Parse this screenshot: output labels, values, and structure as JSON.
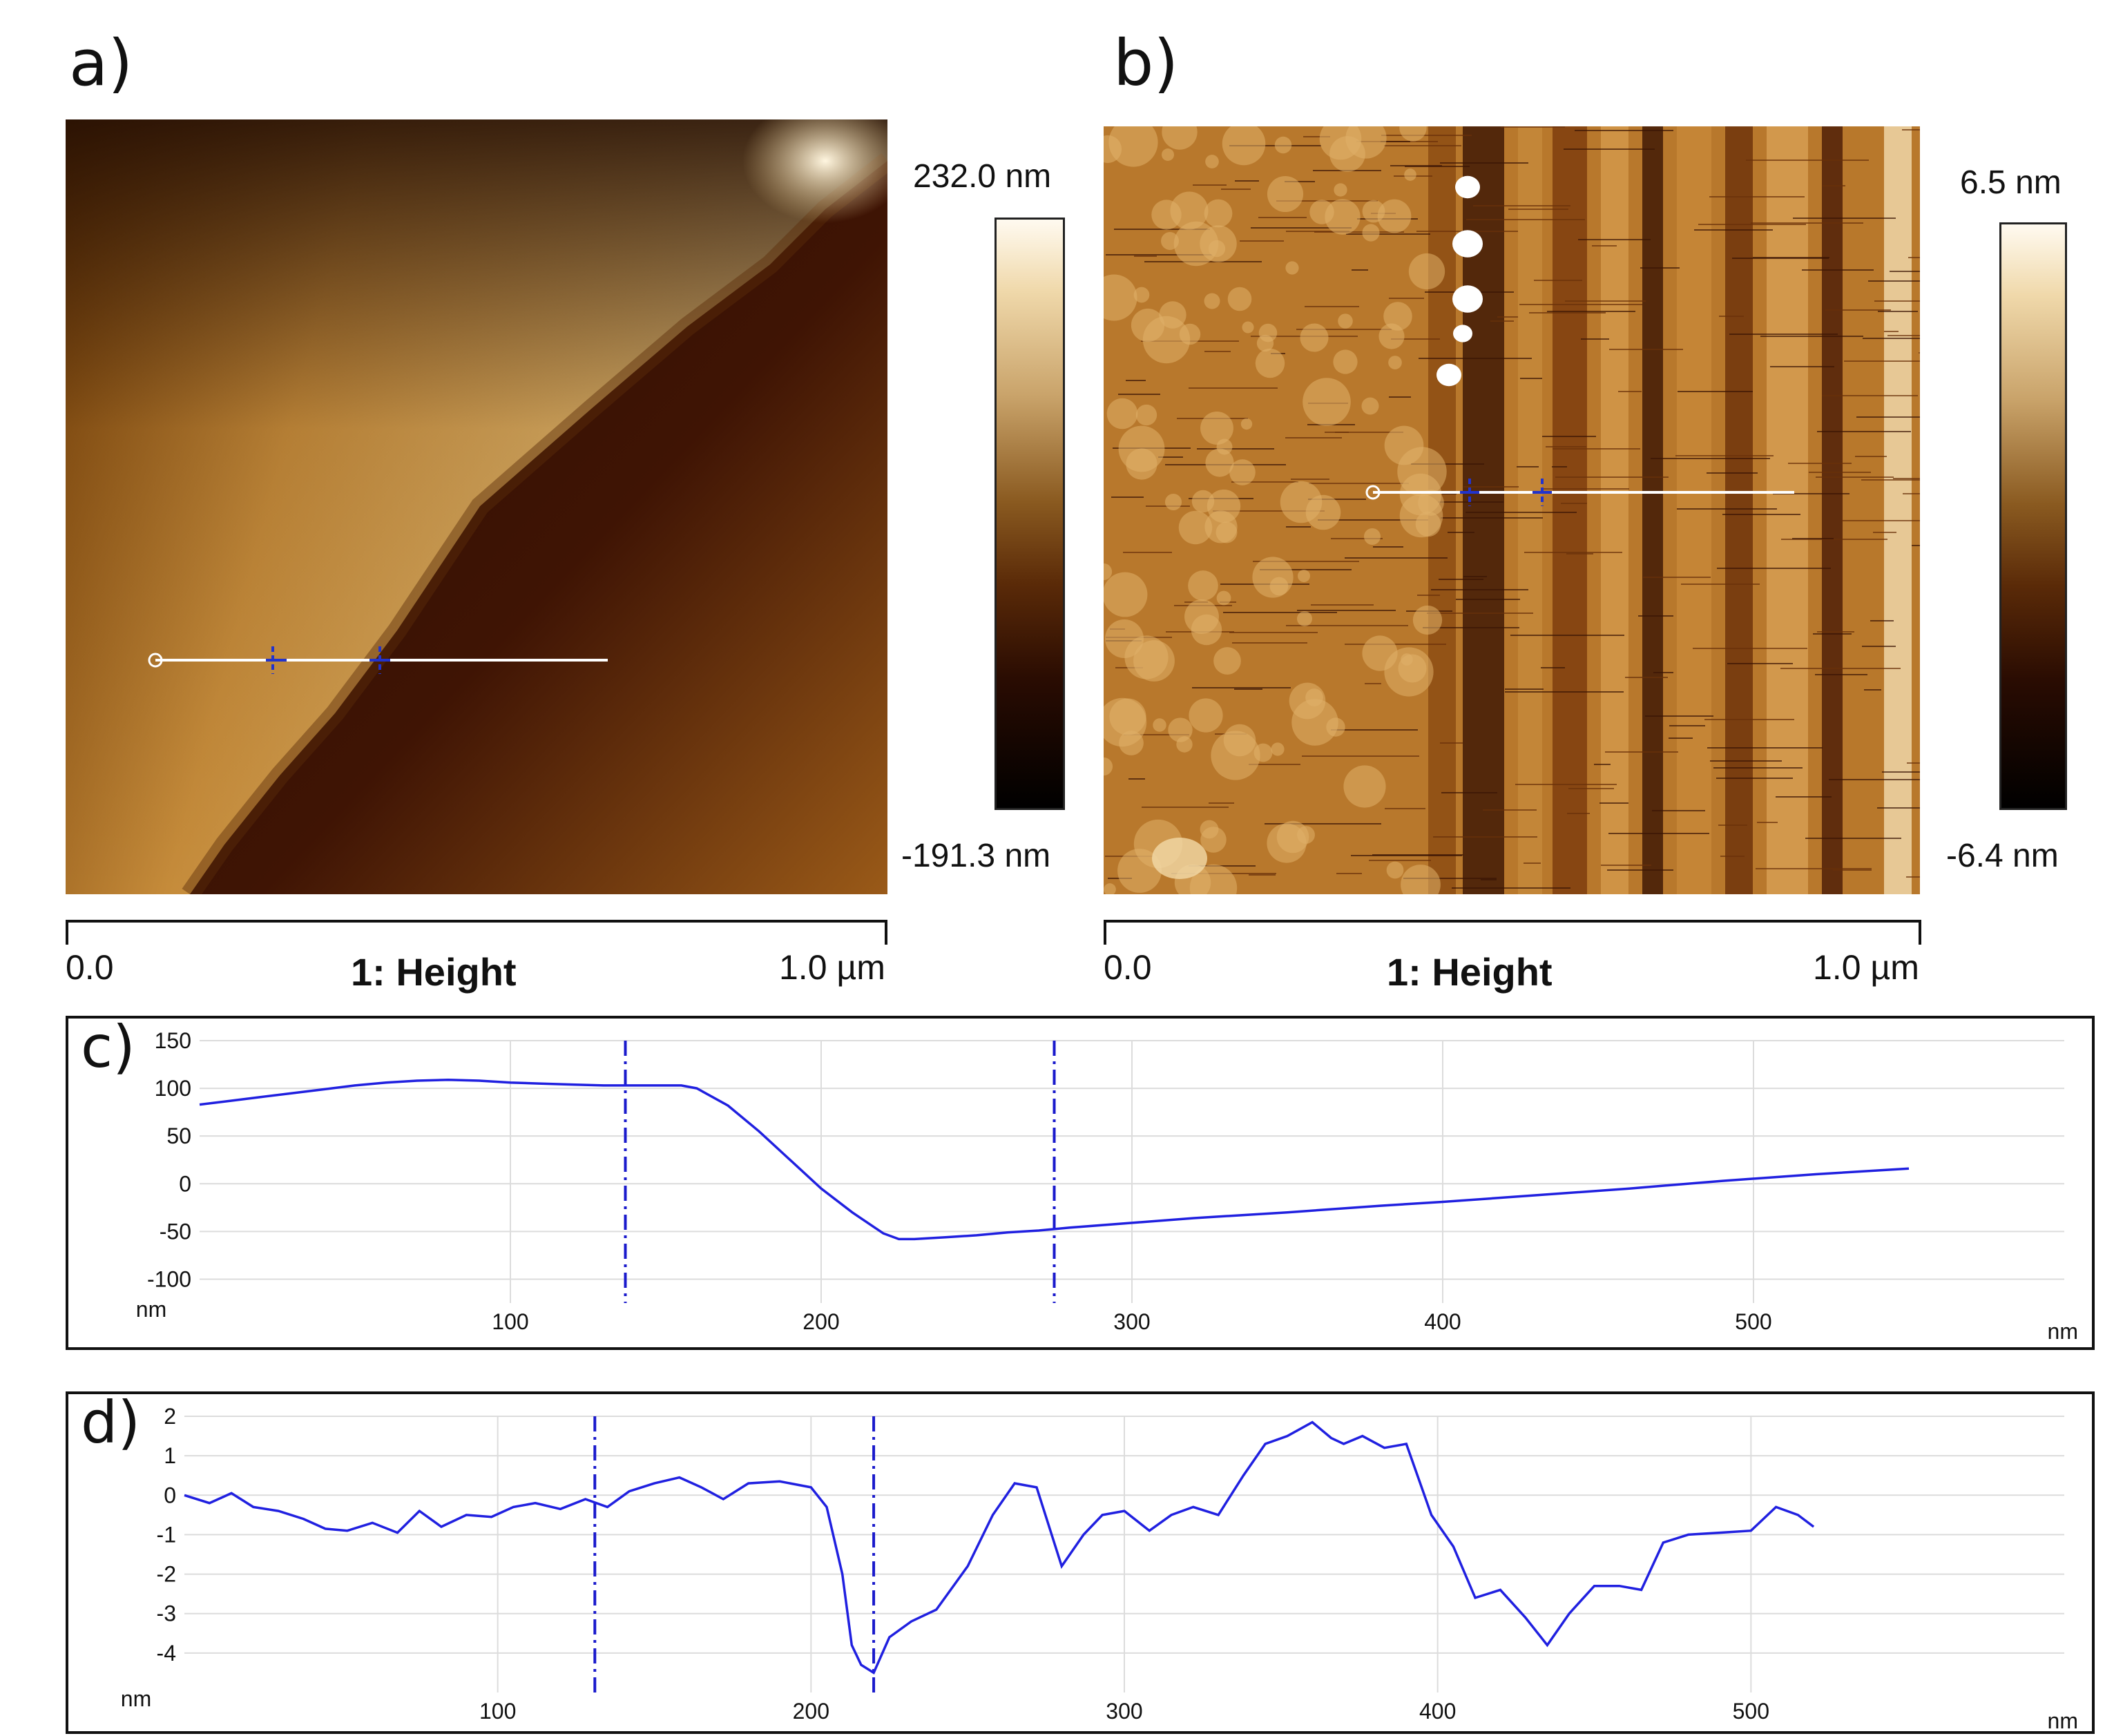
{
  "panels": {
    "a": {
      "letter": "a)",
      "cbar_max": "232.0 nm",
      "cbar_min": "-191.3 nm",
      "scale_start": "0.0",
      "scale_title": "1: Height",
      "scale_end": "1.0 µm"
    },
    "b": {
      "letter": "b)",
      "cbar_max": "6.5 nm",
      "cbar_min": "-6.4 nm",
      "scale_start": "0.0",
      "scale_title": "1: Height",
      "scale_end": "1.0 µm"
    },
    "c": {
      "letter": "c)"
    },
    "d": {
      "letter": "d)"
    }
  },
  "colors": {
    "line": "#2020e0",
    "grid": "#dcdcdc",
    "cursor": "#1a1acc"
  },
  "chart_data": [
    {
      "id": "c",
      "type": "line",
      "title": "",
      "xlabel": "nm",
      "ylabel": "nm",
      "xlim": [
        0,
        600
      ],
      "ylim": [
        -125,
        150
      ],
      "xticks": [
        100,
        200,
        300,
        400,
        500
      ],
      "yticks": [
        150,
        100,
        50,
        0,
        -50,
        -100
      ],
      "cursors": [
        137,
        275
      ],
      "x": [
        0,
        10,
        20,
        30,
        40,
        50,
        60,
        70,
        80,
        90,
        100,
        110,
        120,
        130,
        140,
        150,
        155,
        160,
        170,
        180,
        190,
        200,
        210,
        220,
        225,
        230,
        240,
        250,
        260,
        270,
        280,
        300,
        320,
        350,
        380,
        400,
        430,
        460,
        490,
        520,
        550
      ],
      "y": [
        83,
        87,
        91,
        95,
        99,
        103,
        106,
        108,
        109,
        108,
        106,
        105,
        104,
        103,
        103,
        103,
        103,
        100,
        82,
        55,
        25,
        -5,
        -30,
        -52,
        -58,
        -58,
        -56,
        -54,
        -51,
        -49,
        -46,
        -41,
        -36,
        -30,
        -23,
        -19,
        -12,
        -5,
        3,
        10,
        16
      ]
    },
    {
      "id": "d",
      "type": "line",
      "title": "",
      "xlabel": "nm",
      "ylabel": "nm",
      "xlim": [
        0,
        600
      ],
      "ylim": [
        -5,
        2
      ],
      "xticks": [
        100,
        200,
        300,
        400,
        500
      ],
      "yticks": [
        2,
        1,
        0,
        -1,
        -2,
        -3,
        -4
      ],
      "cursors": [
        131,
        220
      ],
      "x": [
        0,
        8,
        15,
        22,
        30,
        38,
        45,
        52,
        60,
        68,
        75,
        82,
        90,
        98,
        105,
        112,
        120,
        128,
        135,
        142,
        150,
        158,
        165,
        172,
        180,
        190,
        200,
        205,
        210,
        213,
        216,
        220,
        225,
        232,
        240,
        250,
        258,
        265,
        272,
        280,
        287,
        293,
        300,
        308,
        315,
        322,
        330,
        338,
        345,
        352,
        360,
        366,
        370,
        376,
        383,
        390,
        398,
        405,
        412,
        420,
        428,
        435,
        442,
        450,
        458,
        465,
        472,
        480,
        490,
        500,
        508,
        515,
        520
      ],
      "y": [
        0,
        -0.2,
        0.05,
        -0.3,
        -0.4,
        -0.6,
        -0.85,
        -0.9,
        -0.7,
        -0.95,
        -0.4,
        -0.8,
        -0.5,
        -0.55,
        -0.3,
        -0.2,
        -0.35,
        -0.1,
        -0.3,
        0.1,
        0.3,
        0.45,
        0.2,
        -0.1,
        0.3,
        0.35,
        0.2,
        -0.3,
        -2.0,
        -3.8,
        -4.3,
        -4.5,
        -3.6,
        -3.2,
        -2.9,
        -1.8,
        -0.5,
        0.3,
        0.2,
        -1.8,
        -1.0,
        -0.5,
        -0.4,
        -0.9,
        -0.5,
        -0.3,
        -0.5,
        0.5,
        1.3,
        1.5,
        1.85,
        1.45,
        1.3,
        1.5,
        1.2,
        1.3,
        -0.5,
        -1.3,
        -2.6,
        -2.4,
        -3.1,
        -3.8,
        -3.0,
        -2.3,
        -2.3,
        -2.4,
        -1.2,
        -1.0,
        -0.95,
        -0.9,
        -0.3,
        -0.5,
        -0.8
      ]
    }
  ]
}
